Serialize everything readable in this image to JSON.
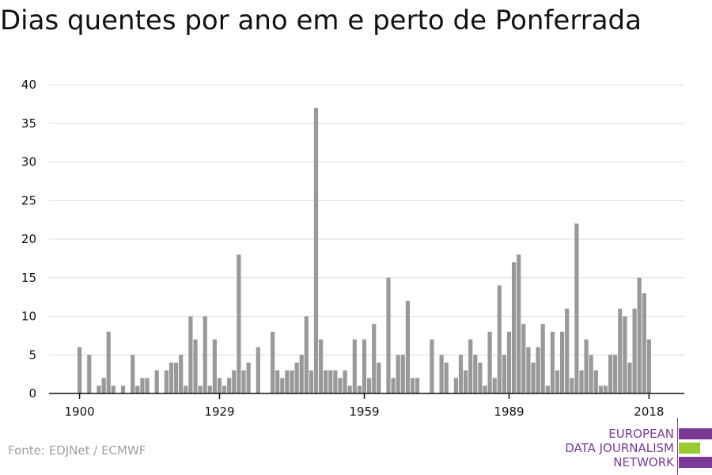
{
  "title": "Dias quentes por ano em e perto de Ponferrada",
  "source": "Fonte: EDJNet / ECMWF",
  "logo": {
    "line1": "EUROPEAN",
    "line2": "DATA JOURNALISM",
    "line3": "NETWORK",
    "colors": {
      "purple": "#7b3a96",
      "green": "#9acd32"
    }
  },
  "colors": {
    "bar": "#999999",
    "grid": "#dddddd",
    "axis": "#111111",
    "text": "#111111"
  },
  "chart_data": {
    "type": "bar",
    "title": "Dias quentes por ano em e perto de Ponferrada",
    "xlabel": "",
    "ylabel": "",
    "ylim": [
      0,
      40
    ],
    "yticks": [
      0,
      5,
      10,
      15,
      20,
      25,
      30,
      35,
      40
    ],
    "xticks": [
      1900,
      1929,
      1959,
      1989,
      2018
    ],
    "grid": true,
    "start_year": 1900,
    "values": [
      6,
      0,
      5,
      0,
      1,
      2,
      8,
      1,
      0,
      1,
      0,
      5,
      1,
      2,
      2,
      0,
      3,
      0,
      3,
      4,
      4,
      5,
      1,
      10,
      7,
      1,
      10,
      1,
      7,
      2,
      1,
      2,
      3,
      18,
      3,
      4,
      0,
      6,
      0,
      0,
      8,
      3,
      2,
      3,
      3,
      4,
      5,
      10,
      3,
      37,
      7,
      3,
      3,
      3,
      2,
      3,
      1,
      7,
      1,
      7,
      2,
      9,
      4,
      0,
      15,
      2,
      5,
      5,
      12,
      2,
      2,
      0,
      0,
      7,
      0,
      5,
      4,
      0,
      2,
      5,
      3,
      7,
      5,
      4,
      1,
      8,
      2,
      14,
      5,
      8,
      17,
      18,
      9,
      6,
      4,
      6,
      9,
      1,
      8,
      3,
      8,
      11,
      2,
      22,
      3,
      7,
      5,
      3,
      1,
      1,
      5,
      5,
      11,
      10,
      4,
      11,
      15,
      13,
      7
    ]
  }
}
